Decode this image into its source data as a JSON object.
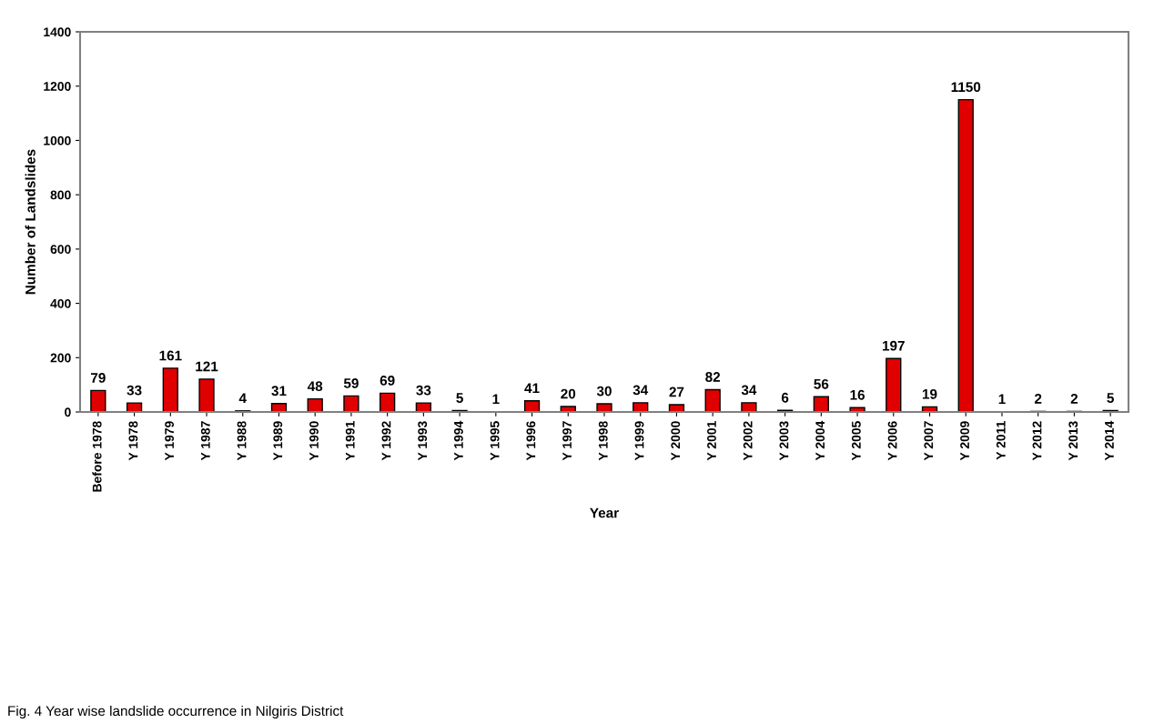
{
  "chart_data": {
    "type": "bar",
    "xlabel": "Year",
    "ylabel": "Number of Landslides",
    "categories": [
      "Before 1978",
      "Y 1978",
      "Y 1979",
      "Y 1987",
      "Y 1988",
      "Y 1989",
      "Y 1990",
      "Y 1991",
      "Y 1992",
      "Y 1993",
      "Y 1994",
      "Y 1995",
      "Y 1996",
      "Y 1997",
      "Y 1998",
      "Y 1999",
      "Y 2000",
      "Y 2001",
      "Y 2002",
      "Y 2003",
      "Y 2004",
      "Y 2005",
      "Y 2006",
      "Y 2007",
      "Y 2009",
      "Y 2011",
      "Y 2012",
      "Y 2013",
      "Y 2014"
    ],
    "values": [
      79,
      33,
      161,
      121,
      4,
      31,
      48,
      59,
      69,
      33,
      5,
      1,
      41,
      20,
      30,
      34,
      27,
      82,
      34,
      6,
      56,
      16,
      197,
      19,
      1150,
      1,
      2,
      2,
      5
    ],
    "color": "#e00000",
    "ylim": [
      0,
      1400
    ],
    "yticks": [
      0,
      200,
      400,
      600,
      800,
      1000,
      1200,
      1400
    ],
    "grid": false,
    "data_labels": true,
    "annotations": [
      "Fig. 4 Year wise landslide occurrence in Nilgiris District"
    ]
  }
}
